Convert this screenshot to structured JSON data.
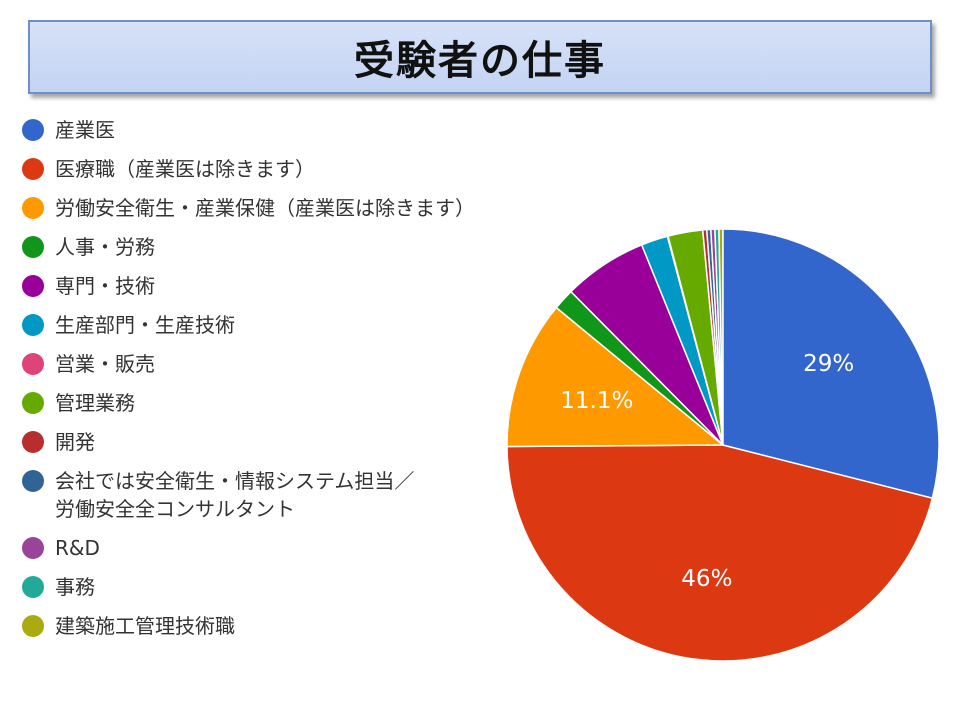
{
  "title": "受験者の仕事",
  "chart_data": {
    "type": "pie",
    "title": "受験者の仕事",
    "slices": [
      {
        "label": "産業医",
        "value": 29,
        "display": "29%",
        "color": "#3366cc"
      },
      {
        "label": "医療職（産業医は除きます）",
        "value": 46,
        "display": "46%",
        "color": "#dc3912"
      },
      {
        "label": "労働安全衛生・産業保健（産業医は除きます）",
        "value": 11.1,
        "display": "11.1%",
        "color": "#ff9900"
      },
      {
        "label": "人事・労務",
        "value": 1.6,
        "display": "",
        "color": "#109618"
      },
      {
        "label": "専門・技術",
        "value": 6.3,
        "display": "",
        "color": "#990099"
      },
      {
        "label": "生産部門・生産技術",
        "value": 2.0,
        "display": "",
        "color": "#0099c6"
      },
      {
        "label": "営業・販売",
        "value": 0.05,
        "display": "",
        "color": "#dd4477"
      },
      {
        "label": "管理業務",
        "value": 2.6,
        "display": "",
        "color": "#66aa00"
      },
      {
        "label": "開発",
        "value": 0.3,
        "display": "",
        "color": "#b82e2e"
      },
      {
        "label": "会社では安全衛生・情報システム担当／\n労働安全全コンサルタント",
        "value": 0.3,
        "display": "",
        "color": "#316395"
      },
      {
        "label": "R&D",
        "value": 0.3,
        "display": "",
        "color": "#994499"
      },
      {
        "label": "事務",
        "value": 0.3,
        "display": "",
        "color": "#22aa99"
      },
      {
        "label": "建築施工管理技術職",
        "value": 0.3,
        "display": "",
        "color": "#aaaa11"
      }
    ],
    "legend_position": "left"
  }
}
